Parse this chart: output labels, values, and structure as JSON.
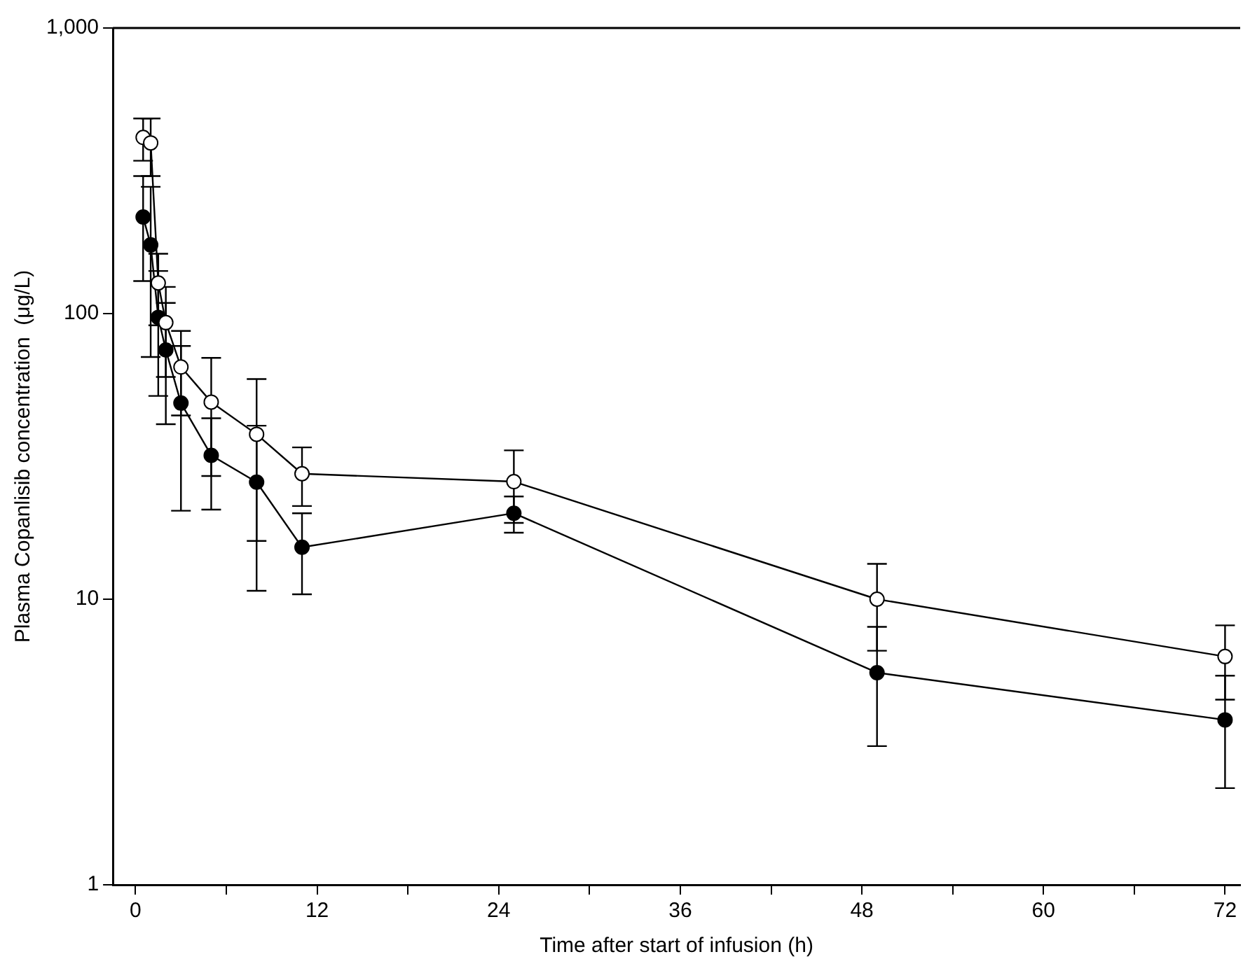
{
  "chart_data": {
    "type": "line",
    "xlabel": "Time after start of infusion (h)",
    "ylabel": "Plasma Copanlisib concentration  (μg/L)",
    "log": "y",
    "xlim": [
      -1.5,
      73
    ],
    "ylim": [
      1,
      1000
    ],
    "xticks": [
      0,
      {
        "value": 6,
        "label": null
      },
      12,
      {
        "value": 18,
        "label": null
      },
      24,
      {
        "value": 30,
        "label": null
      },
      36,
      {
        "value": 42,
        "label": null
      },
      48,
      {
        "value": 54,
        "label": null
      },
      60,
      {
        "value": 66,
        "label": null
      },
      72
    ],
    "yticks": [
      1,
      10,
      100,
      {
        "value": 1000,
        "label": "1,000"
      }
    ],
    "grid": false,
    "legend": false,
    "marker": "circle",
    "line_style": "solid",
    "series": [
      {
        "color": "#000000",
        "colors": [
          "#ffffff",
          "#ffffff",
          "#ffffff",
          "#ffffff",
          "#ffffff",
          "#ffffff",
          "#ffffff",
          "#ffffff",
          "#ffffff",
          "#ffffff",
          "#ffffff"
        ],
        "x": [
          0.5,
          1,
          1.5,
          2,
          3,
          5,
          8,
          11,
          25,
          49,
          72
        ],
        "values": [
          414,
          396,
          128,
          93,
          65,
          49,
          37.8,
          27.5,
          25.8,
          10,
          6.3
        ],
        "errors": [
          [
            343,
            482
          ],
          [
            303,
            482
          ],
          [
            91,
            162
          ],
          [
            60,
            124
          ],
          [
            44,
            87
          ],
          [
            27,
            70
          ],
          [
            16,
            59
          ],
          [
            21.2,
            34
          ],
          [
            18.5,
            33.2
          ],
          [
            6.6,
            13.3
          ],
          [
            4.45,
            8.1
          ]
        ]
      },
      {
        "color": "#000000",
        "colors": [
          "#000000",
          "#000000",
          "#000000",
          "#000000",
          "#000000",
          "#000000",
          "#000000",
          "#000000",
          "#000000",
          "#000000",
          "#000000"
        ],
        "x": [
          0.5,
          1,
          1.5,
          2,
          3,
          5,
          8,
          11,
          25,
          49,
          72
        ],
        "values": [
          218,
          174,
          97,
          74.6,
          48.6,
          31.9,
          25.7,
          15.2,
          20,
          5.53,
          3.78
        ],
        "errors": [
          [
            130,
            303
          ],
          [
            70.5,
            278
          ],
          [
            51.5,
            141
          ],
          [
            41,
            109
          ],
          [
            20.4,
            77
          ],
          [
            20.6,
            43
          ],
          [
            10.7,
            40.5
          ],
          [
            10.4,
            20
          ],
          [
            17.1,
            22.9
          ],
          [
            3.06,
            8
          ],
          [
            2.18,
            5.4
          ]
        ]
      }
    ]
  }
}
